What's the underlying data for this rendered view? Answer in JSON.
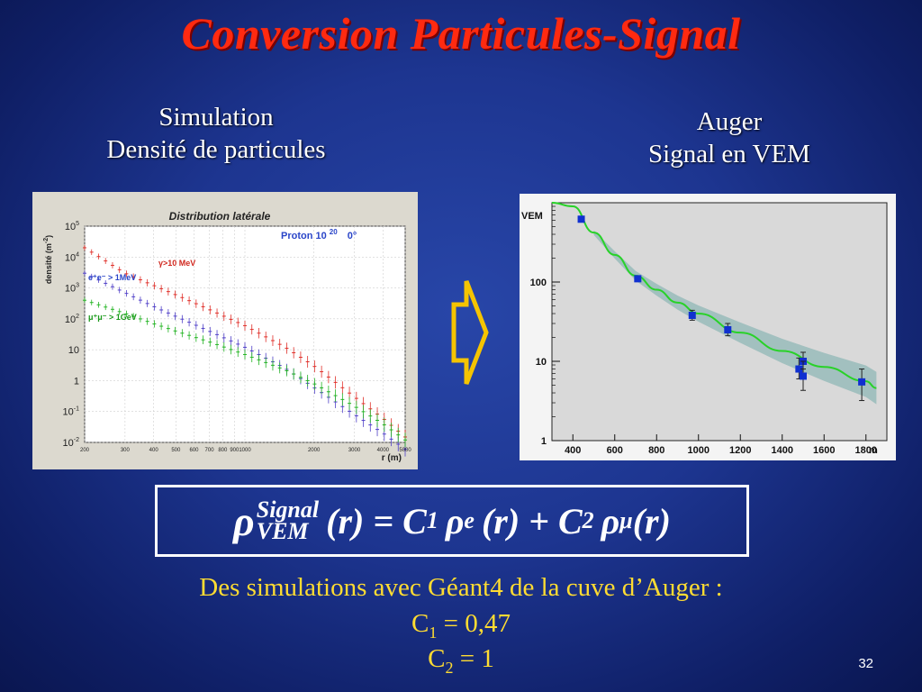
{
  "slide": {
    "title": "Conversion Particules-Signal",
    "page_number": "32"
  },
  "left": {
    "caption_line1": "Simulation",
    "caption_line2": "Densité de particules"
  },
  "right": {
    "caption_line1": "Auger",
    "caption_line2": "Signal en VEM"
  },
  "formula": {
    "rho": "ρ",
    "sup": "Signal",
    "sub": "VEM",
    "rhs_1": "(r) = C",
    "c1_sub": "1",
    "rho_e": "ρ",
    "e_sub": "e",
    "rhs_2": "(r) + C",
    "c2_sub": "2",
    "rho_mu": "ρ",
    "mu_sub": "μ",
    "rhs_3": "(r)"
  },
  "description": {
    "line": "Des simulations avec Géant4 de la cuve d’Auger :",
    "c1_label": "C",
    "c1_sub": "1",
    "c1_value": " = 0,47",
    "c2_label": "C",
    "c2_sub": "2",
    "c2_value": " = 1"
  },
  "arrow": {
    "color": "#f5c400"
  },
  "chart_data": [
    {
      "type": "scatter",
      "title": "Distribution latérale",
      "annotation_primary": "Proton 10",
      "annotation_exp": "20",
      "annotation_angle": "0°",
      "xlabel": "r (m)",
      "ylabel": "densité (m",
      "ylabel_exp": "-2",
      "ylabel_close": ")",
      "xscale": "log",
      "yscale": "log",
      "xlim": [
        200,
        5000
      ],
      "ylim": [
        0.01,
        100000
      ],
      "grid": true,
      "xticks": [
        200,
        300,
        400,
        500,
        600,
        700,
        800,
        900,
        1000,
        2000,
        3000,
        4000,
        5000
      ],
      "xtick_labels": [
        "200",
        "300",
        "400",
        "500",
        "600",
        "700",
        "800",
        "900",
        "1000",
        "2000",
        "3000",
        "4000",
        "5000"
      ],
      "yticks": [
        0.01,
        0.1,
        1,
        10,
        100,
        1000,
        10000,
        100000
      ],
      "ytick_labels": [
        {
          "base": "10",
          "exp": "-2"
        },
        {
          "base": "10",
          "exp": "-1"
        },
        {
          "base": "1",
          "exp": ""
        },
        {
          "base": "10",
          "exp": ""
        },
        {
          "base": "10",
          "exp": "2"
        },
        {
          "base": "10",
          "exp": "3"
        },
        {
          "base": "10",
          "exp": "4"
        },
        {
          "base": "10",
          "exp": "5"
        }
      ],
      "series": [
        {
          "name": "γ>10 MeV",
          "color": "#e0302a",
          "x": [
            200,
            300,
            400,
            500,
            700,
            1000,
            1500,
            2000,
            3000,
            4000,
            5000
          ],
          "y": [
            20000,
            3000,
            1200,
            600,
            200,
            60,
            12,
            3,
            0.3,
            0.06,
            0.015
          ]
        },
        {
          "name": "e⁺e⁻ > 1MeV",
          "color": "#5040c8",
          "x": [
            200,
            300,
            400,
            500,
            700,
            1000,
            1500,
            2000,
            3000,
            4000,
            5000
          ],
          "y": [
            3000,
            700,
            250,
            120,
            40,
            12,
            2.5,
            0.6,
            0.08,
            0.02,
            0.006
          ]
        },
        {
          "name": "μ⁺μ⁻ > 1GeV",
          "color": "#22b422",
          "x": [
            200,
            300,
            400,
            500,
            700,
            1000,
            1500,
            2000,
            3000,
            4000,
            5000
          ],
          "y": [
            400,
            150,
            70,
            40,
            18,
            7,
            2.2,
            0.8,
            0.15,
            0.04,
            0.012
          ]
        }
      ]
    },
    {
      "type": "scatter",
      "ylabel": "VEM",
      "xlabel": "m",
      "yscale": "log",
      "xlim": [
        300,
        1900
      ],
      "ylim": [
        1,
        1000
      ],
      "xticks": [
        400,
        600,
        800,
        1000,
        1200,
        1400,
        1600,
        1800
      ],
      "xtick_labels": [
        "400",
        "600",
        "800",
        "1000",
        "1200",
        "1400",
        "1600",
        "1800"
      ],
      "yticks": [
        1,
        10,
        100
      ],
      "ytick_labels": [
        "1",
        "10",
        "100"
      ],
      "points": {
        "color": "#1030d0",
        "x": [
          440,
          710,
          970,
          1140,
          1480,
          1500,
          1500,
          1780
        ],
        "y": [
          620,
          110,
          38,
          25,
          8,
          10,
          6.5,
          5.5
        ],
        "yerr_low": [
          580,
          102,
          33,
          21,
          6,
          8,
          4.3,
          3.2
        ],
        "yerr_high": [
          660,
          118,
          44,
          30,
          11,
          13,
          10,
          8
        ]
      },
      "fit": {
        "color": "#28d228",
        "band_color": "#8fb7b6",
        "x": [
          300,
          400,
          500,
          600,
          700,
          800,
          900,
          1000,
          1200,
          1400,
          1600,
          1800,
          1850
        ],
        "y": [
          1000,
          900,
          420,
          220,
          120,
          80,
          55,
          40,
          23,
          13.5,
          8.5,
          5.6,
          4.6
        ]
      }
    }
  ]
}
